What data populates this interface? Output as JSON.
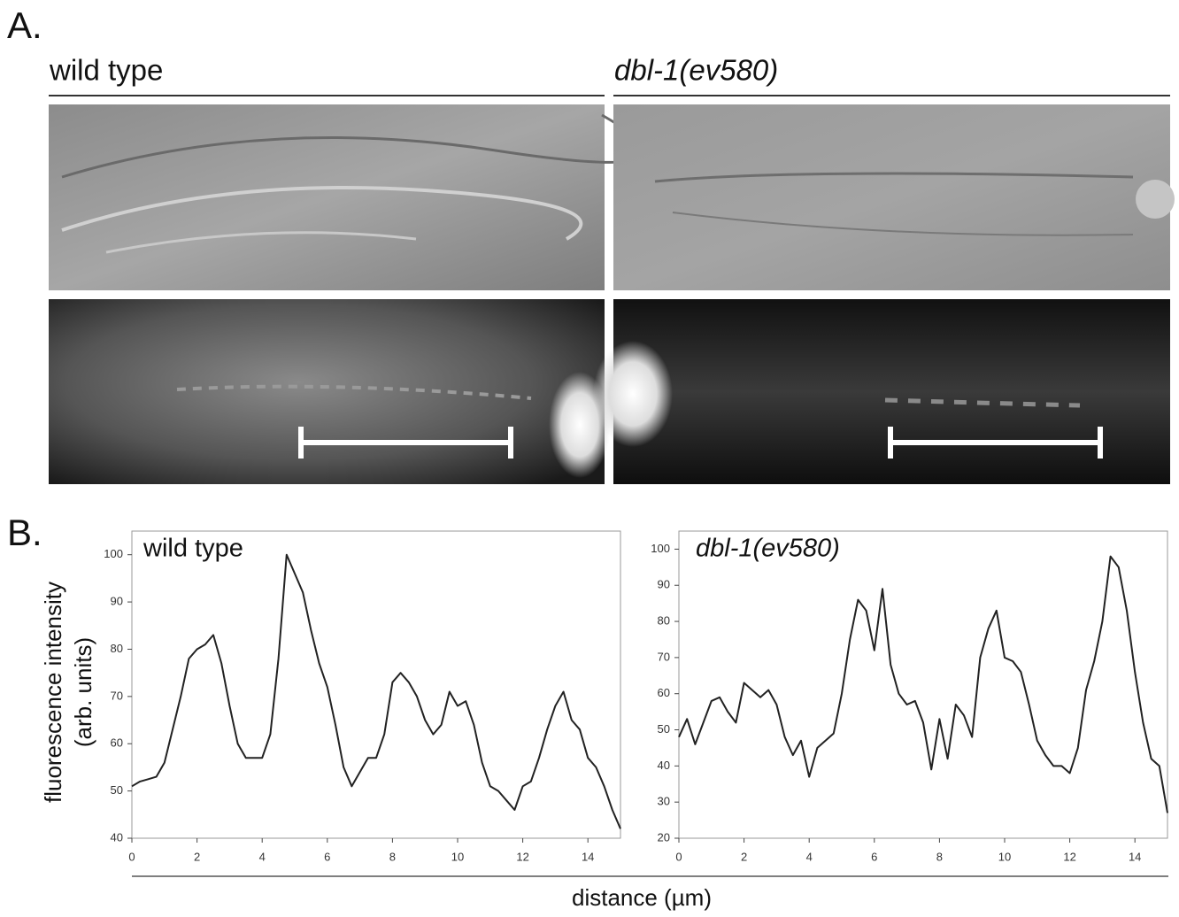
{
  "panel_a": {
    "label": "A.",
    "columns": [
      "wild type",
      "dbl-1(ev580)"
    ]
  },
  "panel_b": {
    "label": "B.",
    "xlabel": "distance (µm)",
    "ylabel": [
      "fluorescence intensity",
      "(arb. units)"
    ]
  },
  "chart_data": [
    {
      "type": "line",
      "title": "wild type",
      "color": "#222222",
      "xlim": [
        0,
        15
      ],
      "xticks": [
        0,
        2,
        4,
        6,
        8,
        10,
        12,
        14
      ],
      "ylim": [
        40,
        105
      ],
      "yticks": [
        40,
        50,
        60,
        70,
        80,
        90,
        100
      ],
      "x": [
        0,
        0.25,
        0.5,
        0.75,
        1,
        1.25,
        1.5,
        1.75,
        2,
        2.25,
        2.5,
        2.75,
        3,
        3.25,
        3.5,
        3.75,
        4,
        4.25,
        4.5,
        4.75,
        5,
        5.25,
        5.5,
        5.75,
        6,
        6.25,
        6.5,
        6.75,
        7,
        7.25,
        7.5,
        7.75,
        8,
        8.25,
        8.5,
        8.75,
        9,
        9.25,
        9.5,
        9.75,
        10,
        10.25,
        10.5,
        10.75,
        11,
        11.25,
        11.5,
        11.75,
        12,
        12.25,
        12.5,
        12.75,
        13,
        13.25,
        13.5,
        13.75,
        14,
        14.25,
        14.5,
        14.75,
        15
      ],
      "values": [
        51,
        52,
        52.5,
        53,
        56,
        63,
        70,
        78,
        80,
        81,
        83,
        77,
        68,
        60,
        57,
        57,
        57,
        62,
        78,
        100,
        96,
        92,
        84,
        77,
        72,
        64,
        55,
        51,
        54,
        57,
        57,
        62,
        73,
        75,
        73,
        70,
        65,
        62,
        64,
        71,
        68,
        69,
        64,
        56,
        51,
        50,
        48,
        46,
        51,
        52,
        57,
        63,
        68,
        71,
        65,
        63,
        57,
        55,
        51,
        46,
        42
      ]
    },
    {
      "type": "line",
      "title": "dbl-1(ev580)",
      "color": "#222222",
      "xlim": [
        0,
        15
      ],
      "xticks": [
        0,
        2,
        4,
        6,
        8,
        10,
        12,
        14
      ],
      "ylim": [
        20,
        105
      ],
      "yticks": [
        20,
        30,
        40,
        50,
        60,
        70,
        80,
        90,
        100
      ],
      "x": [
        0,
        0.25,
        0.5,
        0.75,
        1,
        1.25,
        1.5,
        1.75,
        2,
        2.25,
        2.5,
        2.75,
        3,
        3.25,
        3.5,
        3.75,
        4,
        4.25,
        4.5,
        4.75,
        5,
        5.25,
        5.5,
        5.75,
        6,
        6.25,
        6.5,
        6.75,
        7,
        7.25,
        7.5,
        7.75,
        8,
        8.25,
        8.5,
        8.75,
        9,
        9.25,
        9.5,
        9.75,
        10,
        10.25,
        10.5,
        10.75,
        11,
        11.25,
        11.5,
        11.75,
        12,
        12.25,
        12.5,
        12.75,
        13,
        13.25,
        13.5,
        13.75,
        14,
        14.25,
        14.5,
        14.75,
        15
      ],
      "values": [
        48,
        53,
        46,
        52,
        58,
        59,
        55,
        52,
        63,
        61,
        59,
        61,
        57,
        48,
        43,
        47,
        37,
        45,
        47,
        49,
        60,
        75,
        86,
        83,
        72,
        89,
        68,
        60,
        57,
        58,
        52,
        39,
        53,
        42,
        57,
        54,
        48,
        70,
        78,
        83,
        70,
        69,
        66,
        57,
        47,
        43,
        40,
        40,
        38,
        45,
        61,
        69,
        80,
        98,
        95,
        83,
        66,
        52,
        42,
        40,
        27
      ]
    }
  ]
}
